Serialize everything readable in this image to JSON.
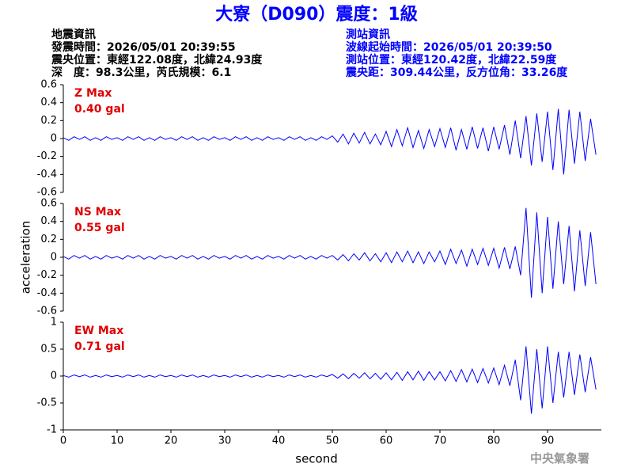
{
  "header": {
    "title": "大寮（D090）震度：1級",
    "left": [
      "地震資訊",
      "發震時間：2026/05/01 20:39:55",
      "震央位置：東經122.08度，北緯24.93度",
      "深　度：98.3公里，芮氏規模：6.1"
    ],
    "right": [
      "測站資訊",
      "波線起始時間：2026/05/01 20:39:50",
      "測站位置：東經120.42度，北緯22.59度",
      "震央距：309.44公里，反方位角：33.26度"
    ]
  },
  "footer": "中央氣象署",
  "chart_data": [
    {
      "type": "line",
      "annotation": [
        "Z Max",
        "0.40 gal"
      ],
      "x": [
        0,
        1,
        2,
        3,
        4,
        5,
        6,
        7,
        8,
        9,
        10,
        11,
        12,
        13,
        14,
        15,
        16,
        17,
        18,
        19,
        20,
        21,
        22,
        23,
        24,
        25,
        26,
        27,
        28,
        29,
        30,
        31,
        32,
        33,
        34,
        35,
        36,
        37,
        38,
        39,
        40,
        41,
        42,
        43,
        44,
        45,
        46,
        47,
        48,
        49,
        50,
        51,
        52,
        53,
        54,
        55,
        56,
        57,
        58,
        59,
        60,
        61,
        62,
        63,
        64,
        65,
        66,
        67,
        68,
        69,
        70,
        71,
        72,
        73,
        74,
        75,
        76,
        77,
        78,
        79,
        80,
        81,
        82,
        83,
        84,
        85,
        86,
        87,
        88,
        89,
        90,
        91,
        92,
        93,
        94,
        95,
        96,
        97,
        98,
        99
      ],
      "series": [
        {
          "color": "#0000ff",
          "values": [
            0.01,
            -0.02,
            0.02,
            -0.01,
            0.02,
            -0.02,
            0.01,
            -0.02,
            0.02,
            -0.01,
            0.01,
            -0.02,
            0.02,
            -0.01,
            0.02,
            -0.02,
            0.01,
            -0.02,
            0.02,
            -0.01,
            0.01,
            -0.02,
            0.02,
            -0.01,
            0.02,
            -0.02,
            0.01,
            -0.02,
            0.02,
            -0.01,
            0.01,
            -0.02,
            0.02,
            -0.01,
            0.02,
            -0.02,
            0.01,
            -0.02,
            0.02,
            -0.01,
            0.01,
            -0.02,
            0.02,
            -0.01,
            0.02,
            -0.02,
            0.01,
            -0.02,
            0.02,
            -0.01,
            0.03,
            -0.04,
            0.05,
            -0.06,
            0.06,
            -0.05,
            0.07,
            -0.06,
            0.05,
            -0.07,
            0.08,
            -0.09,
            0.1,
            -0.08,
            0.12,
            -0.1,
            0.09,
            -0.11,
            0.1,
            -0.09,
            0.11,
            -0.1,
            0.12,
            -0.13,
            0.1,
            -0.12,
            0.13,
            -0.11,
            0.12,
            -0.14,
            0.13,
            -0.12,
            0.15,
            -0.18,
            0.2,
            -0.22,
            0.25,
            -0.3,
            0.28,
            -0.26,
            0.3,
            -0.35,
            0.33,
            -0.4,
            0.32,
            -0.28,
            0.3,
            -0.25,
            0.22,
            -0.18
          ]
        }
      ],
      "xlim": [
        0,
        100
      ],
      "ylim": [
        -0.6,
        0.6
      ],
      "yticks": [
        -0.6,
        -0.4,
        -0.2,
        0,
        0.2,
        0.4,
        0.6
      ]
    },
    {
      "type": "line",
      "annotation": [
        "NS Max",
        "0.55 gal"
      ],
      "ylabel": "acceleration",
      "x": [
        0,
        1,
        2,
        3,
        4,
        5,
        6,
        7,
        8,
        9,
        10,
        11,
        12,
        13,
        14,
        15,
        16,
        17,
        18,
        19,
        20,
        21,
        22,
        23,
        24,
        25,
        26,
        27,
        28,
        29,
        30,
        31,
        32,
        33,
        34,
        35,
        36,
        37,
        38,
        39,
        40,
        41,
        42,
        43,
        44,
        45,
        46,
        47,
        48,
        49,
        50,
        51,
        52,
        53,
        54,
        55,
        56,
        57,
        58,
        59,
        60,
        61,
        62,
        63,
        64,
        65,
        66,
        67,
        68,
        69,
        70,
        71,
        72,
        73,
        74,
        75,
        76,
        77,
        78,
        79,
        80,
        81,
        82,
        83,
        84,
        85,
        86,
        87,
        88,
        89,
        90,
        91,
        92,
        93,
        94,
        95,
        96,
        97,
        98,
        99
      ],
      "series": [
        {
          "color": "#0000ff",
          "values": [
            0.01,
            -0.02,
            0.02,
            -0.01,
            0.02,
            -0.02,
            0.01,
            -0.02,
            0.02,
            -0.01,
            0.01,
            -0.02,
            0.02,
            -0.01,
            0.02,
            -0.02,
            0.01,
            -0.02,
            0.02,
            -0.01,
            0.01,
            -0.02,
            0.02,
            -0.01,
            0.02,
            -0.02,
            0.01,
            -0.02,
            0.02,
            -0.01,
            0.01,
            -0.02,
            0.02,
            -0.01,
            0.02,
            -0.02,
            0.01,
            -0.02,
            0.02,
            -0.01,
            0.01,
            -0.02,
            0.02,
            -0.01,
            0.02,
            -0.02,
            0.01,
            -0.02,
            0.02,
            -0.01,
            0.02,
            -0.03,
            0.03,
            -0.04,
            0.04,
            -0.03,
            0.05,
            -0.04,
            0.04,
            -0.05,
            0.05,
            -0.06,
            0.06,
            -0.05,
            0.07,
            -0.06,
            0.06,
            -0.07,
            0.06,
            -0.05,
            0.07,
            -0.08,
            0.09,
            -0.07,
            0.08,
            -0.1,
            0.09,
            -0.08,
            0.1,
            -0.09,
            0.1,
            -0.12,
            0.11,
            -0.13,
            0.12,
            -0.2,
            0.55,
            -0.45,
            0.5,
            -0.4,
            0.45,
            -0.35,
            0.4,
            -0.3,
            0.35,
            -0.38,
            0.3,
            -0.32,
            0.28,
            -0.3
          ]
        }
      ],
      "xlim": [
        0,
        100
      ],
      "ylim": [
        -0.6,
        0.6
      ],
      "yticks": [
        -0.6,
        -0.4,
        -0.2,
        0,
        0.2,
        0.4,
        0.6
      ]
    },
    {
      "type": "line",
      "annotation": [
        "EW Max",
        "0.71 gal"
      ],
      "xlabel": "second",
      "x": [
        0,
        1,
        2,
        3,
        4,
        5,
        6,
        7,
        8,
        9,
        10,
        11,
        12,
        13,
        14,
        15,
        16,
        17,
        18,
        19,
        20,
        21,
        22,
        23,
        24,
        25,
        26,
        27,
        28,
        29,
        30,
        31,
        32,
        33,
        34,
        35,
        36,
        37,
        38,
        39,
        40,
        41,
        42,
        43,
        44,
        45,
        46,
        47,
        48,
        49,
        50,
        51,
        52,
        53,
        54,
        55,
        56,
        57,
        58,
        59,
        60,
        61,
        62,
        63,
        64,
        65,
        66,
        67,
        68,
        69,
        70,
        71,
        72,
        73,
        74,
        75,
        76,
        77,
        78,
        79,
        80,
        81,
        82,
        83,
        84,
        85,
        86,
        87,
        88,
        89,
        90,
        91,
        92,
        93,
        94,
        95,
        96,
        97,
        98,
        99
      ],
      "series": [
        {
          "color": "#0000ff",
          "values": [
            0.01,
            -0.02,
            0.02,
            -0.01,
            0.02,
            -0.02,
            0.01,
            -0.02,
            0.02,
            -0.01,
            0.01,
            -0.02,
            0.02,
            -0.01,
            0.02,
            -0.02,
            0.01,
            -0.02,
            0.02,
            -0.01,
            0.01,
            -0.02,
            0.02,
            -0.01,
            0.02,
            -0.02,
            0.01,
            -0.02,
            0.02,
            -0.01,
            0.01,
            -0.02,
            0.02,
            -0.01,
            0.02,
            -0.02,
            0.01,
            -0.02,
            0.02,
            -0.01,
            0.01,
            -0.02,
            0.02,
            -0.01,
            0.02,
            -0.02,
            0.01,
            -0.02,
            0.02,
            -0.01,
            0.03,
            -0.04,
            0.04,
            -0.05,
            0.05,
            -0.04,
            0.06,
            -0.05,
            0.05,
            -0.06,
            0.06,
            -0.07,
            0.07,
            -0.08,
            0.08,
            -0.07,
            0.09,
            -0.08,
            0.08,
            -0.07,
            0.08,
            -0.09,
            0.1,
            -0.1,
            0.12,
            -0.11,
            0.13,
            -0.12,
            0.14,
            -0.13,
            0.15,
            -0.16,
            0.2,
            -0.18,
            0.3,
            -0.45,
            0.55,
            -0.7,
            0.5,
            -0.6,
            0.55,
            -0.5,
            0.45,
            -0.4,
            0.45,
            -0.35,
            0.4,
            -0.3,
            0.35,
            -0.25
          ]
        }
      ],
      "xlim": [
        0,
        100
      ],
      "xticks": [
        0,
        10,
        20,
        30,
        40,
        50,
        60,
        70,
        80,
        90
      ],
      "ylim": [
        -1,
        1
      ],
      "yticks": [
        -1,
        -0.5,
        0,
        0.5,
        1
      ]
    }
  ]
}
